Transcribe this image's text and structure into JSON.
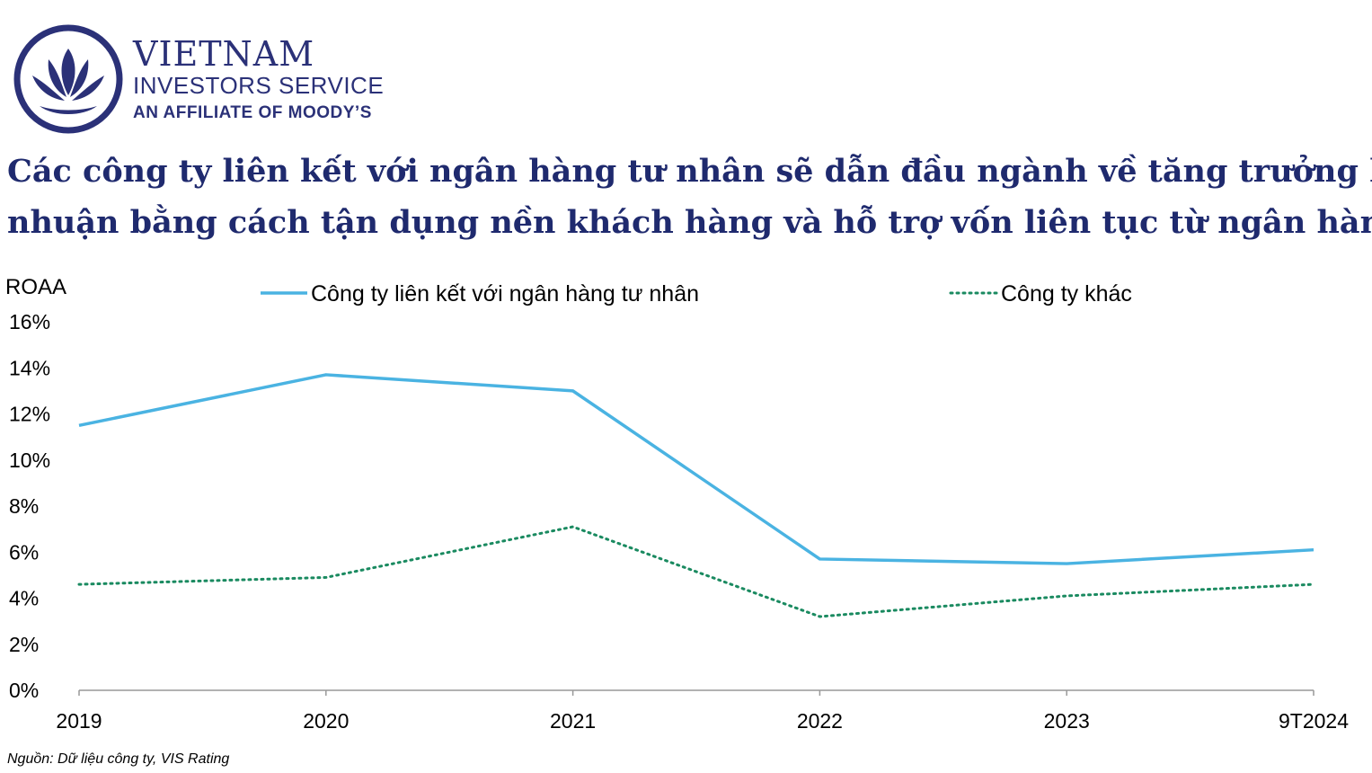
{
  "brand": {
    "name": "VIETNAM",
    "sub": "INVESTORS SERVICE",
    "affiliate": "AN AFFILIATE OF MOODY’S",
    "color": "#2b3178"
  },
  "headline": {
    "line1": "Các công ty liên kết với ngân hàng tư nhân sẽ dẫn đầu ngành về tăng trưởng lợi",
    "line2": "nhuận bằng cách tận dụng nền khách hàng và hỗ trợ  vốn liên tục từ ngân hàng"
  },
  "source": "Nguồn: Dữ liệu công ty, VIS Rating",
  "chart_data": {
    "type": "line",
    "ylabel": "ROAA",
    "categories": [
      "2019",
      "2020",
      "2021",
      "2022",
      "2023",
      "9T2024"
    ],
    "ylim": [
      0,
      16
    ],
    "yticks": [
      "0%",
      "2%",
      "4%",
      "6%",
      "8%",
      "10%",
      "12%",
      "14%",
      "16%"
    ],
    "grid": false,
    "legend_position": "top",
    "series": [
      {
        "name": "Công ty liên kết với ngân hàng tư nhân",
        "values": [
          11.5,
          13.7,
          13.0,
          5.7,
          5.5,
          6.1
        ],
        "color": "#4ab3e2",
        "style": "solid"
      },
      {
        "name": "Công ty khác",
        "values": [
          4.6,
          4.9,
          7.1,
          3.2,
          4.1,
          4.6
        ],
        "color": "#1a8a60",
        "style": "dotted"
      }
    ]
  }
}
